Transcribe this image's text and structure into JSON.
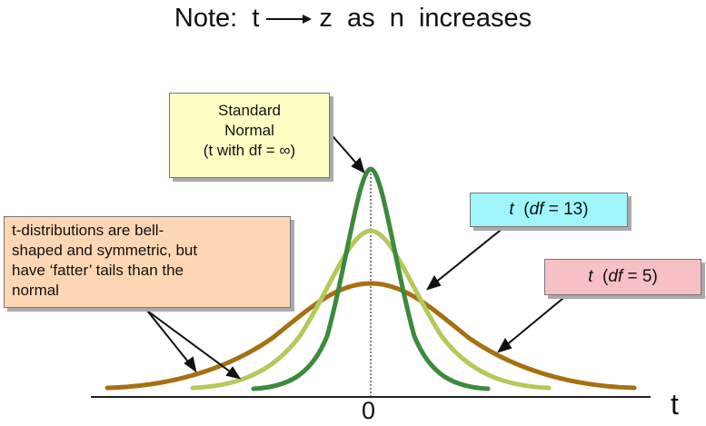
{
  "title": {
    "prefix": "Note:  t",
    "suffix": "z  as  n  increases"
  },
  "callouts": {
    "standard_normal": {
      "line1": "Standard",
      "line2": "Normal",
      "line3": "(t with df = ∞)",
      "background": "#ffffc4"
    },
    "df13": {
      "t": "t",
      "open": "(",
      "df": "df",
      "rest": " = 13)",
      "background": "#9ff5fa"
    },
    "df5": {
      "t": "t",
      "open": "(",
      "df": "df",
      "rest": " = 5)",
      "background": "#f6c0c4"
    },
    "tails_note": {
      "line1": "t-distributions are bell-",
      "line2": "shaped and symmetric, but",
      "line3": "have ‘fatter’ tails than the",
      "line4": "normal",
      "background": "#fdd6b3"
    }
  },
  "axis": {
    "center_label": "0",
    "variable_label": "t"
  },
  "curves": [
    {
      "name": "standard-normal",
      "color": "#3c8a3c"
    },
    {
      "name": "t-df-13",
      "color": "#b3c95a"
    },
    {
      "name": "t-df-5",
      "color": "#a66f12"
    }
  ]
}
